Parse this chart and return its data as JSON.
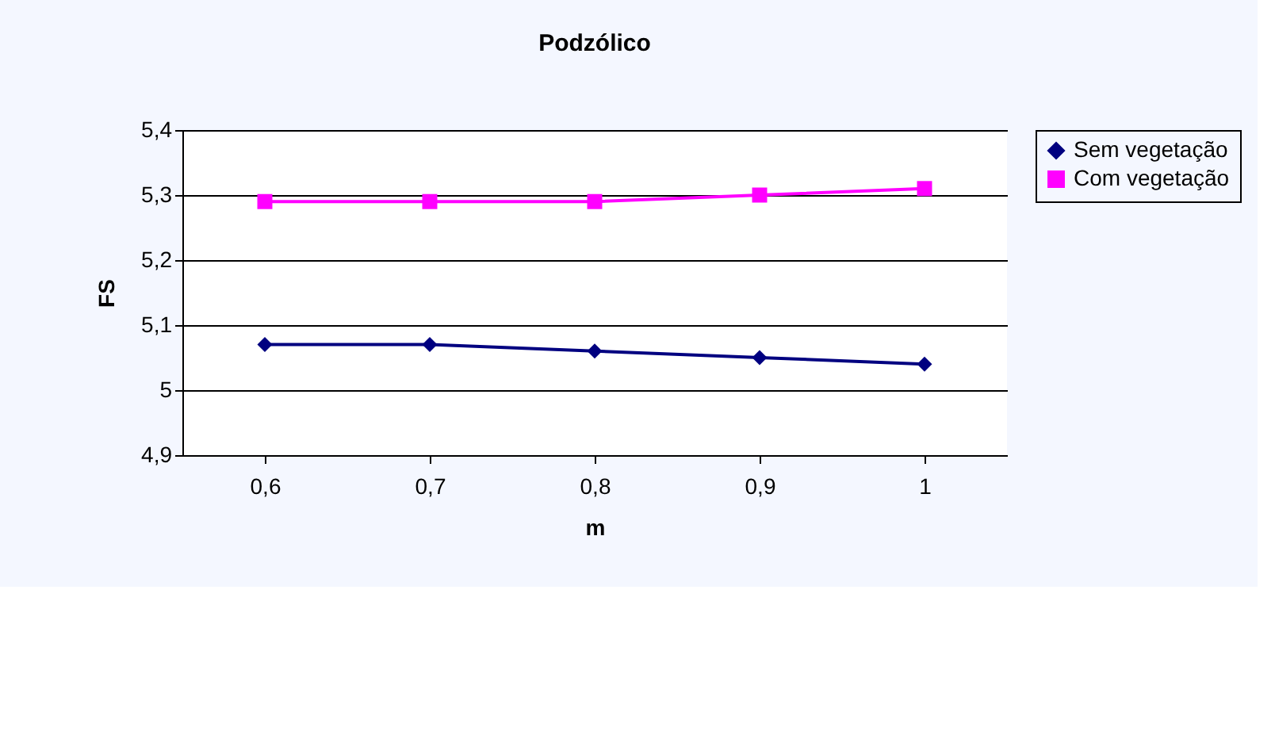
{
  "chart_data": {
    "type": "line",
    "title": "Podzólico",
    "xlabel": "m",
    "ylabel": "FS",
    "categories": [
      "0,6",
      "0,7",
      "0,8",
      "0,9",
      "1"
    ],
    "series": [
      {
        "name": "Sem vegetação",
        "color": "#000080",
        "marker": "diamond",
        "values": [
          5.07,
          5.07,
          5.06,
          5.05,
          5.04
        ]
      },
      {
        "name": "Com vegetação",
        "color": "#ff00ff",
        "marker": "square",
        "values": [
          5.29,
          5.29,
          5.29,
          5.3,
          5.31
        ]
      }
    ],
    "ylim": [
      4.9,
      5.4
    ],
    "yticks": [
      {
        "value": 4.9,
        "label": "4,9"
      },
      {
        "value": 5,
        "label": "5"
      },
      {
        "value": 5.1,
        "label": "5,1"
      },
      {
        "value": 5.2,
        "label": "5,2"
      },
      {
        "value": 5.3,
        "label": "5,3"
      },
      {
        "value": 5.4,
        "label": "5,4"
      }
    ],
    "grid": "y",
    "legend": "right",
    "line_style": "solid"
  }
}
